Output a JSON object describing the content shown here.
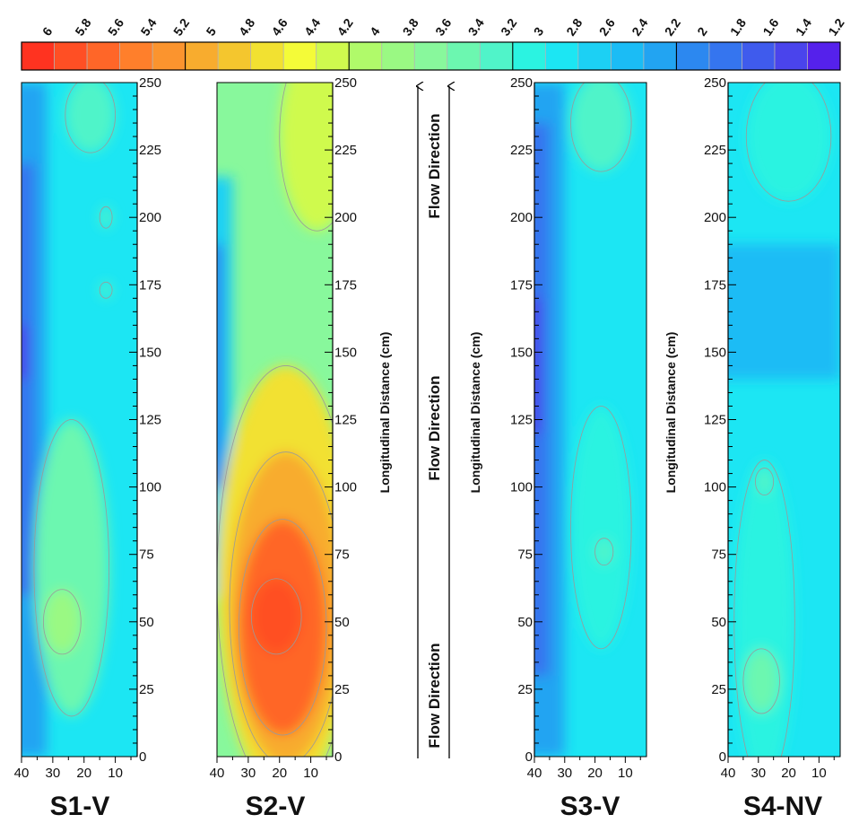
{
  "chart_data": {
    "type": "heatmap",
    "colorbar": {
      "levels": [
        "6",
        "5.8",
        "5.6",
        "5.4",
        "5.2",
        "5",
        "4.8",
        "4.6",
        "4.4",
        "4.2",
        "4",
        "3.8",
        "3.6",
        "3.4",
        "3.2",
        "3",
        "2.8",
        "2.6",
        "2.4",
        "2.2",
        "2",
        "1.8",
        "1.6",
        "1.4",
        "1.2"
      ],
      "colors": [
        "#ff3320",
        "#ff4f24",
        "#ff6628",
        "#ff7f2b",
        "#fb942e",
        "#f8ac2e",
        "#f4c62e",
        "#f2e131",
        "#f4fb38",
        "#cffa4e",
        "#b0fa6a",
        "#9af983",
        "#88f89c",
        "#6cf7b0",
        "#50f4c9",
        "#2bf3e1",
        "#1ce6f3",
        "#1cd0f4",
        "#1bbcf5",
        "#22a4f2",
        "#2c88f0",
        "#3575ef",
        "#3f5bed",
        "#4a44ec",
        "#5521eb"
      ]
    },
    "panels": [
      {
        "title": "S1-V",
        "ylabel": "",
        "xticks": [
          "40",
          "30",
          "20",
          "10"
        ],
        "yticks": [
          "0",
          "25",
          "50",
          "75",
          "100",
          "125",
          "150",
          "175",
          "200",
          "225",
          "250"
        ],
        "xlim": [
          40,
          3
        ],
        "ylim": [
          0,
          250
        ],
        "bg_value": 2.7,
        "features": [
          {
            "type": "band",
            "x": 40,
            "w": 8,
            "y0": 0,
            "y1": 250,
            "value": 2.0
          },
          {
            "type": "band",
            "x": 40,
            "w": 4,
            "y0": 60,
            "y1": 220,
            "value": 1.6
          },
          {
            "type": "band",
            "x": 40,
            "w": 2,
            "y0": 140,
            "y1": 160,
            "value": 1.3
          },
          {
            "type": "blob",
            "cx": 24,
            "cy": 70,
            "rx": 12,
            "ry": 55,
            "value": 3.2
          },
          {
            "type": "blob",
            "cx": 27,
            "cy": 50,
            "rx": 6,
            "ry": 12,
            "value": 3.6
          },
          {
            "type": "blob",
            "cx": 18,
            "cy": 238,
            "rx": 8,
            "ry": 14,
            "value": 3.0
          },
          {
            "type": "blob",
            "cx": 13,
            "cy": 200,
            "rx": 2,
            "ry": 4,
            "value": 3.0
          },
          {
            "type": "blob",
            "cx": 13,
            "cy": 173,
            "rx": 2,
            "ry": 3,
            "value": 3.0
          }
        ]
      },
      {
        "title": "S2-V",
        "ylabel": "Longitudinal Distance (cm)",
        "xticks": [
          "40",
          "30",
          "20",
          "10"
        ],
        "yticks": [
          "0",
          "25",
          "50",
          "75",
          "100",
          "125",
          "150",
          "175",
          "200",
          "225",
          "250"
        ],
        "xlim": [
          40,
          3
        ],
        "ylim": [
          0,
          250
        ],
        "bg_value": 3.4,
        "features": [
          {
            "type": "band",
            "x": 40,
            "w": 5,
            "y0": 60,
            "y1": 215,
            "value": 2.4
          },
          {
            "type": "band",
            "x": 40,
            "w": 2,
            "y0": 100,
            "y1": 190,
            "value": 1.8
          },
          {
            "type": "blob",
            "cx": 8,
            "cy": 230,
            "rx": 12,
            "ry": 35,
            "value": 4.0
          },
          {
            "type": "blob",
            "cx": 18,
            "cy": 65,
            "rx": 22,
            "ry": 80,
            "value": 4.4
          },
          {
            "type": "blob",
            "cx": 18,
            "cy": 55,
            "rx": 18,
            "ry": 58,
            "value": 4.9
          },
          {
            "type": "blob",
            "cx": 19,
            "cy": 48,
            "rx": 14,
            "ry": 40,
            "value": 5.4
          },
          {
            "type": "blob",
            "cx": 21,
            "cy": 52,
            "rx": 8,
            "ry": 14,
            "value": 5.7
          }
        ]
      },
      {
        "title": "S3-V",
        "ylabel": "Longitudinal Distance (cm)",
        "xticks": [
          "40",
          "30",
          "20",
          "10"
        ],
        "yticks": [
          "0",
          "25",
          "50",
          "75",
          "100",
          "125",
          "150",
          "175",
          "200",
          "225",
          "250"
        ],
        "xlim": [
          40,
          3
        ],
        "ylim": [
          0,
          250
        ],
        "bg_value": 2.6,
        "features": [
          {
            "type": "band",
            "x": 40,
            "w": 10,
            "y0": 0,
            "y1": 250,
            "value": 2.0
          },
          {
            "type": "band",
            "x": 40,
            "w": 5,
            "y0": 30,
            "y1": 235,
            "value": 1.6
          },
          {
            "type": "band",
            "x": 40,
            "w": 2,
            "y0": 120,
            "y1": 170,
            "value": 1.3
          },
          {
            "type": "blob",
            "cx": 18,
            "cy": 85,
            "rx": 10,
            "ry": 45,
            "value": 2.8
          },
          {
            "type": "blob",
            "cx": 18,
            "cy": 235,
            "rx": 10,
            "ry": 18,
            "value": 3.0
          },
          {
            "type": "blob",
            "cx": 17,
            "cy": 76,
            "rx": 3,
            "ry": 5,
            "value": 3.1
          }
        ]
      },
      {
        "title": "S4-NV",
        "ylabel": "Longitudinal Distance (cm)",
        "xticks": [
          "40",
          "30",
          "20",
          "10"
        ],
        "yticks": [
          "0",
          "25",
          "50",
          "75",
          "100",
          "125",
          "150",
          "175",
          "200",
          "225",
          "250"
        ],
        "xlim": [
          40,
          3
        ],
        "ylim": [
          0,
          250
        ],
        "bg_value": 2.6,
        "features": [
          {
            "type": "band",
            "x": 40,
            "w": 37,
            "y0": 140,
            "y1": 190,
            "value": 2.2
          },
          {
            "type": "blob",
            "cx": 20,
            "cy": 230,
            "rx": 14,
            "ry": 24,
            "value": 2.9
          },
          {
            "type": "blob",
            "cx": 28,
            "cy": 50,
            "rx": 10,
            "ry": 60,
            "value": 2.9
          },
          {
            "type": "blob",
            "cx": 29,
            "cy": 28,
            "rx": 6,
            "ry": 12,
            "value": 3.3
          },
          {
            "type": "blob",
            "cx": 28,
            "cy": 102,
            "rx": 3,
            "ry": 5,
            "value": 3.1
          }
        ]
      }
    ],
    "flow_label": "Flow Direction"
  }
}
